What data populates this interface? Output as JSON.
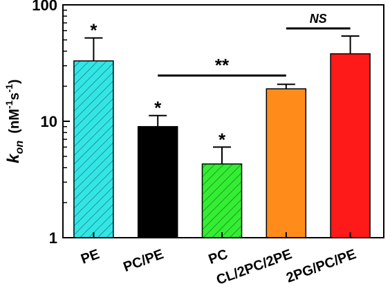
{
  "chart_data": {
    "type": "bar",
    "categories": [
      "PE",
      "PC/PE",
      "PC",
      "CL/2PC/2PE",
      "2PG/PC/PE"
    ],
    "values": [
      33,
      9,
      4.3,
      19,
      38
    ],
    "errors": [
      19,
      2.2,
      1.7,
      1.8,
      16
    ],
    "bar_colors": [
      "#33e6e6",
      "#000000",
      "#33ee33",
      "#ff8c1a",
      "#ff1a1a"
    ],
    "bar_patterns": [
      "hatch-down",
      "solid",
      "hatch-down",
      "solid",
      "solid"
    ],
    "significance": [
      "*",
      "*",
      "*",
      "",
      ""
    ],
    "comparisons": [
      {
        "from": "PC/PE",
        "to": "CL/2PC/2PE",
        "label": "**"
      },
      {
        "from": "CL/2PC/2PE",
        "to": "2PG/PC/PE",
        "label": "NS"
      }
    ],
    "y_scale": "log",
    "ylim": [
      1,
      100
    ],
    "y_ticks": [
      "1",
      "10",
      "100"
    ],
    "ylabel": {
      "main": "k",
      "sub": "on",
      "unit_open": "(nM",
      "unit_sup1": "-1",
      "unit_mid": "s",
      "unit_sup2": "-1",
      "unit_close": ")"
    },
    "title": "",
    "xlabel": "",
    "grid": false,
    "legend": "none"
  }
}
